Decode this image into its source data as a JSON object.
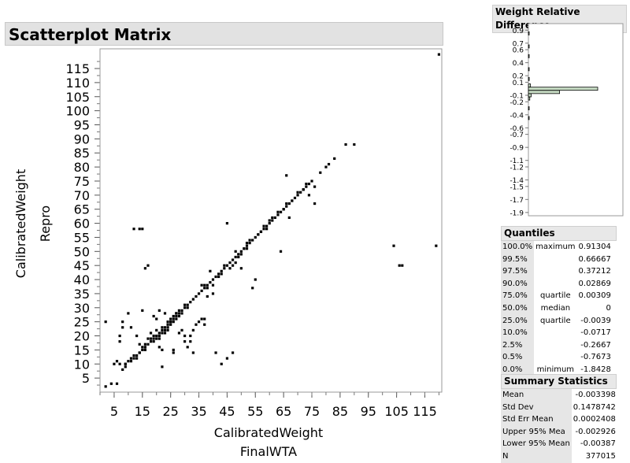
{
  "main_title": "Scatterplot Matrix",
  "scatter": {
    "xlabel_line1": "CalibratedWeight",
    "xlabel_line2": "FinalWTA",
    "ylabel_line1": "CalibratedWeight",
    "ylabel_line2": "Repro"
  },
  "histogram_title": "Weight Relative Difference",
  "quantiles": {
    "title": "Quantiles",
    "rows": [
      {
        "pct": "100.0%",
        "desc": "maximum",
        "value": "0.91304"
      },
      {
        "pct": "99.5%",
        "desc": "",
        "value": "0.66667"
      },
      {
        "pct": "97.5%",
        "desc": "",
        "value": "0.37212"
      },
      {
        "pct": "90.0%",
        "desc": "",
        "value": "0.02869"
      },
      {
        "pct": "75.0%",
        "desc": "quartile",
        "value": "0.00309"
      },
      {
        "pct": "50.0%",
        "desc": "median",
        "value": "0"
      },
      {
        "pct": "25.0%",
        "desc": "quartile",
        "value": "-0.0039"
      },
      {
        "pct": "10.0%",
        "desc": "",
        "value": "-0.0717"
      },
      {
        "pct": "2.5%",
        "desc": "",
        "value": "-0.2667"
      },
      {
        "pct": "0.5%",
        "desc": "",
        "value": "-0.7673"
      },
      {
        "pct": "0.0%",
        "desc": "minimum",
        "value": "-1.8428"
      }
    ]
  },
  "summary": {
    "title": "Summary Statistics",
    "rows": [
      {
        "label": "Mean",
        "value": "-0.003398"
      },
      {
        "label": "Std Dev",
        "value": "0.1478742"
      },
      {
        "label": "Std Err Mean",
        "value": "0.0002408"
      },
      {
        "label": "Upper 95% Mea",
        "value": "-0.002926"
      },
      {
        "label": "Lower 95% Mean",
        "value": "-0.00387"
      },
      {
        "label": "N",
        "value": "377015"
      }
    ]
  },
  "chart_data": [
    {
      "type": "scatter",
      "title": "Scatterplot Matrix",
      "xlabel": "CalibratedWeight FinalWTA",
      "ylabel": "CalibratedWeight Repro",
      "xlim": [
        0,
        121
      ],
      "ylim": [
        0,
        122
      ],
      "x_tick_labels": [
        "5",
        "15",
        "25",
        "35",
        "45",
        "55",
        "65",
        "75",
        "85",
        "95",
        "105",
        "115"
      ],
      "y_tick_labels": [
        "5",
        "10",
        "15",
        "20",
        "25",
        "30",
        "35",
        "40",
        "45",
        "50",
        "55",
        "60",
        "65",
        "70",
        "75",
        "80",
        "85",
        "90",
        "95",
        "100",
        "105",
        "110",
        "115"
      ],
      "points": [
        [
          2,
          2
        ],
        [
          4,
          3
        ],
        [
          6,
          3
        ],
        [
          9,
          10
        ],
        [
          7,
          10
        ],
        [
          2,
          25
        ],
        [
          8,
          8
        ],
        [
          9,
          9
        ],
        [
          10,
          11
        ],
        [
          11,
          12
        ],
        [
          12,
          13
        ],
        [
          13,
          13
        ],
        [
          14,
          14
        ],
        [
          15,
          15
        ],
        [
          16,
          16
        ],
        [
          17,
          17
        ],
        [
          18,
          18
        ],
        [
          19,
          19
        ],
        [
          20,
          20
        ],
        [
          21,
          21
        ],
        [
          22,
          22
        ],
        [
          23,
          23
        ],
        [
          24,
          24
        ],
        [
          25,
          25
        ],
        [
          26,
          26
        ],
        [
          27,
          27
        ],
        [
          28,
          28
        ],
        [
          29,
          29
        ],
        [
          30,
          30
        ],
        [
          31,
          31
        ],
        [
          32,
          32
        ],
        [
          33,
          33
        ],
        [
          34,
          34
        ],
        [
          35,
          35
        ],
        [
          36,
          36
        ],
        [
          37,
          37
        ],
        [
          38,
          38
        ],
        [
          39,
          39
        ],
        [
          40,
          40
        ],
        [
          41,
          41
        ],
        [
          42,
          42
        ],
        [
          43,
          43
        ],
        [
          44,
          44
        ],
        [
          45,
          45
        ],
        [
          46,
          46
        ],
        [
          47,
          47
        ],
        [
          48,
          48
        ],
        [
          49,
          49
        ],
        [
          50,
          50
        ],
        [
          51,
          51
        ],
        [
          52,
          52
        ],
        [
          53,
          53
        ],
        [
          54,
          54
        ],
        [
          55,
          55
        ],
        [
          56,
          56
        ],
        [
          57,
          57
        ],
        [
          58,
          58
        ],
        [
          59,
          59
        ],
        [
          60,
          60
        ],
        [
          61,
          61
        ],
        [
          62,
          62
        ],
        [
          63,
          63
        ],
        [
          64,
          64
        ],
        [
          65,
          65
        ],
        [
          66,
          66
        ],
        [
          67,
          67
        ],
        [
          68,
          68
        ],
        [
          69,
          69
        ],
        [
          70,
          70
        ],
        [
          71,
          71
        ],
        [
          72,
          72
        ],
        [
          73,
          73
        ],
        [
          74,
          74
        ],
        [
          75,
          75
        ],
        [
          78,
          78
        ],
        [
          80,
          80
        ],
        [
          81,
          81
        ],
        [
          83,
          83
        ],
        [
          87,
          88
        ],
        [
          90,
          88
        ],
        [
          120,
          120
        ],
        [
          9,
          10
        ],
        [
          12,
          12
        ],
        [
          14,
          14
        ],
        [
          16,
          17
        ],
        [
          18,
          19
        ],
        [
          19,
          20
        ],
        [
          20,
          19
        ],
        [
          21,
          20
        ],
        [
          22,
          21
        ],
        [
          23,
          22
        ],
        [
          24,
          25
        ],
        [
          25,
          24
        ],
        [
          26,
          27
        ],
        [
          27,
          26
        ],
        [
          28,
          29
        ],
        [
          29,
          28
        ],
        [
          30,
          31
        ],
        [
          31,
          30
        ],
        [
          17,
          19
        ],
        [
          18,
          21
        ],
        [
          19,
          18
        ],
        [
          20,
          22
        ],
        [
          21,
          19
        ],
        [
          22,
          23
        ],
        [
          23,
          21
        ],
        [
          24,
          23
        ],
        [
          25,
          26
        ],
        [
          26,
          25
        ],
        [
          27,
          28
        ],
        [
          28,
          27
        ],
        [
          15,
          16
        ],
        [
          16,
          15
        ],
        [
          13,
          12
        ],
        [
          11,
          11
        ],
        [
          5,
          10
        ],
        [
          6,
          11
        ],
        [
          7,
          20
        ],
        [
          7,
          18
        ],
        [
          8,
          25
        ],
        [
          8,
          23
        ],
        [
          10,
          28
        ],
        [
          11,
          23
        ],
        [
          12,
          58
        ],
        [
          14,
          58
        ],
        [
          15,
          58
        ],
        [
          15,
          29
        ],
        [
          13,
          20
        ],
        [
          14,
          17
        ],
        [
          16,
          44
        ],
        [
          17,
          45
        ],
        [
          16,
          15
        ],
        [
          19,
          27
        ],
        [
          20,
          26
        ],
        [
          21,
          29
        ],
        [
          21,
          16
        ],
        [
          22,
          15
        ],
        [
          22,
          9
        ],
        [
          23,
          28
        ],
        [
          24,
          22
        ],
        [
          25,
          25
        ],
        [
          26,
          14
        ],
        [
          26,
          15
        ],
        [
          27,
          28
        ],
        [
          28,
          21
        ],
        [
          29,
          22
        ],
        [
          30,
          18
        ],
        [
          32,
          18
        ],
        [
          34,
          24
        ],
        [
          35,
          25
        ],
        [
          33,
          14
        ],
        [
          36,
          26
        ],
        [
          36,
          38
        ],
        [
          37,
          38
        ],
        [
          38,
          34
        ],
        [
          39,
          43
        ],
        [
          40,
          38
        ],
        [
          42,
          41
        ],
        [
          43,
          42
        ],
        [
          44,
          45
        ],
        [
          45,
          60
        ],
        [
          46,
          44
        ],
        [
          47,
          45
        ],
        [
          48,
          46
        ],
        [
          49,
          48
        ],
        [
          50,
          49
        ],
        [
          51,
          51
        ],
        [
          52,
          53
        ],
        [
          53,
          54
        ],
        [
          54,
          37
        ],
        [
          55,
          40
        ],
        [
          56,
          56
        ],
        [
          57,
          57
        ],
        [
          58,
          59
        ],
        [
          61,
          62
        ],
        [
          63,
          64
        ],
        [
          65,
          65
        ],
        [
          66,
          67
        ],
        [
          67,
          62
        ],
        [
          68,
          68
        ],
        [
          70,
          71
        ],
        [
          72,
          72
        ],
        [
          74,
          70
        ],
        [
          76,
          73
        ],
        [
          76,
          67
        ],
        [
          66,
          77
        ],
        [
          73,
          74
        ],
        [
          64,
          50
        ],
        [
          59,
          58
        ],
        [
          52,
          51
        ],
        [
          60,
          61
        ],
        [
          41,
          14
        ],
        [
          43,
          10
        ],
        [
          45,
          12
        ],
        [
          47,
          14
        ],
        [
          50,
          44
        ],
        [
          48,
          50
        ],
        [
          40,
          35
        ],
        [
          38,
          37
        ],
        [
          37,
          26
        ],
        [
          37,
          24
        ],
        [
          32,
          20
        ],
        [
          33,
          22
        ],
        [
          30,
          20
        ],
        [
          31,
          16
        ],
        [
          104,
          52
        ],
        [
          106,
          45
        ],
        [
          107,
          45
        ],
        [
          119,
          52
        ]
      ]
    },
    {
      "type": "bar",
      "title": "Weight Relative Difference",
      "orientation": "horizontal",
      "y_tick_labels": [
        "0.9",
        "0.7",
        "0.6",
        "0.4",
        "0.2",
        "0.1",
        "-0.1",
        "-0.2",
        "-0.4",
        "-0.6",
        "-0.7",
        "-0.9",
        "-1.1",
        "-1.2",
        "-1.4",
        "-1.5",
        "-1.7",
        "-1.9"
      ],
      "ylim": [
        -1.95,
        1.0
      ],
      "bins": [
        {
          "center": 0.0,
          "count": 1.0
        },
        {
          "center": -0.05,
          "count": 0.45
        },
        {
          "center": -0.1,
          "count": 0.04
        },
        {
          "center": 0.05,
          "count": 0.03
        },
        {
          "center": -0.15,
          "count": 0.02
        },
        {
          "center": 0.15,
          "count": 0.012
        },
        {
          "center": 0.3,
          "count": 0.008
        },
        {
          "center": -0.3,
          "count": 0.008
        },
        {
          "center": 0.5,
          "count": 0.006
        },
        {
          "center": 0.65,
          "count": 0.004
        },
        {
          "center": 0.85,
          "count": 0.003
        },
        {
          "center": -0.45,
          "count": 0.004
        }
      ],
      "bar_color": "#c7dcc4",
      "bar_edge_color": "#000000"
    }
  ]
}
